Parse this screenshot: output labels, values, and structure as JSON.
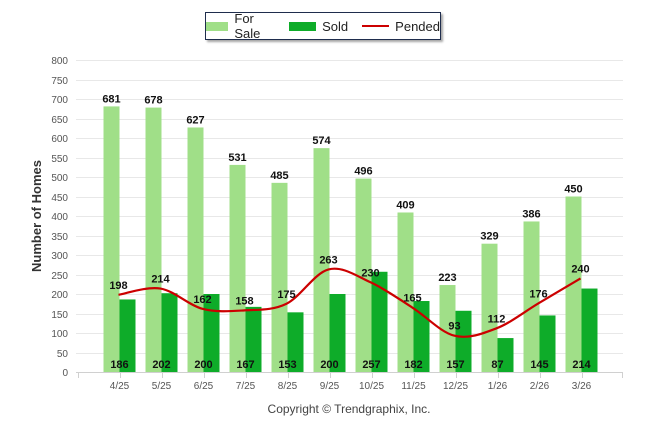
{
  "chart_data": {
    "type": "bar",
    "title": "",
    "xlabel": "",
    "ylabel": "Number of Homes",
    "ylim": [
      0,
      800
    ],
    "yticks": [
      0,
      50,
      100,
      150,
      200,
      250,
      300,
      350,
      400,
      450,
      500,
      550,
      600,
      650,
      700,
      750,
      800
    ],
    "grid": true,
    "legend_position": "top-center",
    "categories": [
      "4/25",
      "5/25",
      "6/25",
      "7/25",
      "8/25",
      "9/25",
      "10/25",
      "11/25",
      "12/25",
      "1/26",
      "2/26",
      "3/26"
    ],
    "series": [
      {
        "name": "For Sale",
        "type": "bar",
        "color": "#a0df88",
        "values": [
          681,
          678,
          627,
          531,
          485,
          574,
          496,
          409,
          223,
          329,
          386,
          450
        ]
      },
      {
        "name": "Sold",
        "type": "bar",
        "color": "#0eac29",
        "values": [
          186,
          202,
          200,
          167,
          153,
          200,
          257,
          182,
          157,
          87,
          145,
          214
        ]
      },
      {
        "name": "Pended",
        "type": "line",
        "color": "#cc0000",
        "values": [
          198,
          214,
          162,
          158,
          175,
          263,
          230,
          165,
          93,
          112,
          176,
          240
        ]
      }
    ]
  },
  "footer": {
    "copyright": "Copyright © Trendgraphix, Inc."
  }
}
